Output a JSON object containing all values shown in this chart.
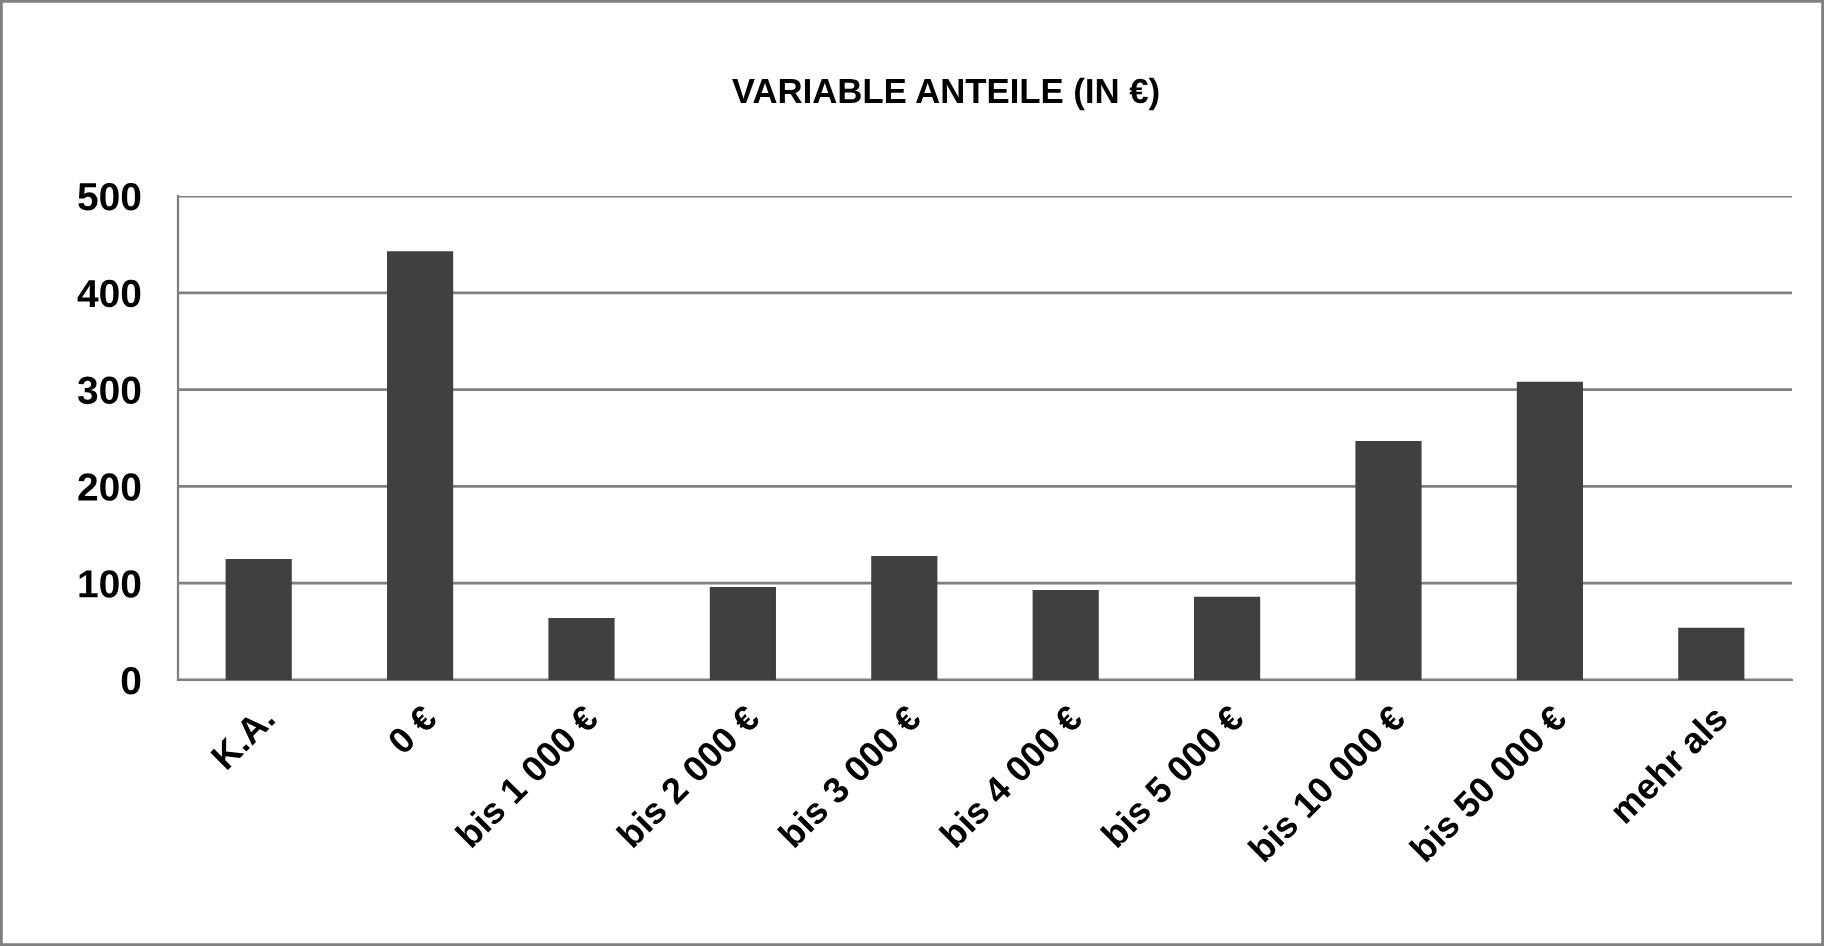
{
  "chart_data": {
    "type": "bar",
    "title": "VARIABLE ANTEILE (IN €)",
    "categories": [
      "K.A.",
      "0 €",
      "bis 1 000 €",
      "bis 2 000 €",
      "bis 3 000 €",
      "bis 4 000 €",
      "bis 5 000 €",
      "bis 10 000 €",
      "bis 50 000 €",
      "mehr als"
    ],
    "values": [
      125,
      443,
      64,
      96,
      128,
      93,
      86,
      247,
      308,
      54
    ],
    "color": "#404040",
    "ylim": [
      0,
      500
    ],
    "yticks": [
      0,
      100,
      200,
      300,
      400,
      500
    ],
    "grid": "y"
  }
}
